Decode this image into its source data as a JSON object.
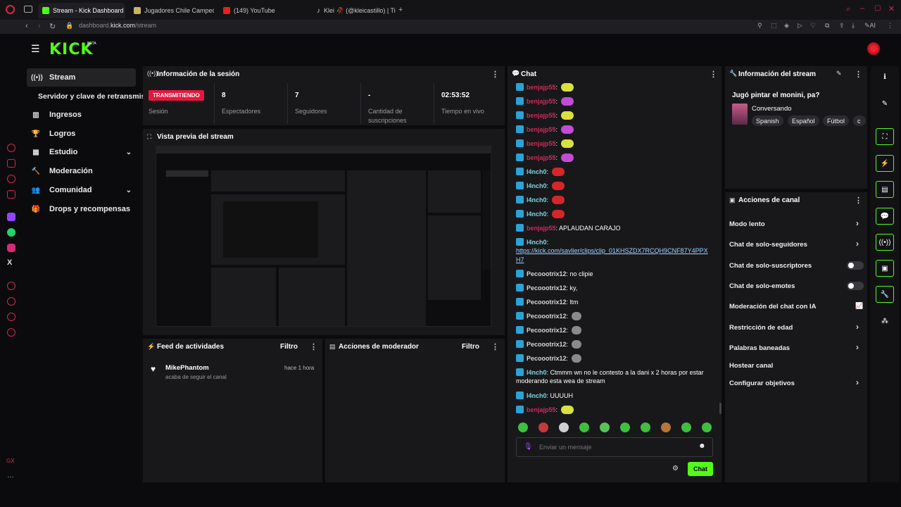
{
  "browser": {
    "tabs": [
      {
        "label": "Stream - Kick Dashboard",
        "active": true
      },
      {
        "label": "Jugadores Chile Campeón"
      },
      {
        "label": "(149) YouTube"
      },
      {
        "label": "Klei 🥀 (@kleicastillo) | Ti"
      }
    ],
    "url_prefix": "dashboard.",
    "url_domain": "kick.com",
    "url_path": "/stream"
  },
  "app": {
    "logo": "KICK",
    "logo_badge": "BETA"
  },
  "nav": [
    {
      "label": "Stream",
      "icon": "broadcast-icon",
      "active": true
    },
    {
      "label": "Servidor y clave de retransmisión",
      "icon": ""
    },
    {
      "label": "Ingresos",
      "icon": "chart-icon"
    },
    {
      "label": "Logros",
      "icon": "trophy-icon"
    },
    {
      "label": "Estudio",
      "icon": "grid-icon",
      "expandable": true
    },
    {
      "label": "Moderación",
      "icon": "hammer-icon"
    },
    {
      "label": "Comunidad",
      "icon": "users-icon",
      "expandable": true
    },
    {
      "label": "Drops y recompensas",
      "icon": "gift-icon"
    }
  ],
  "session": {
    "title": "Información de la sesión",
    "status": "TRANSMITIENDO",
    "stats": [
      {
        "label": "Sesión",
        "value": ""
      },
      {
        "label": "Espectadores",
        "value": "8"
      },
      {
        "label": "Seguidores",
        "value": "7"
      },
      {
        "label": "Cantidad de suscripciones",
        "value": "-"
      },
      {
        "label": "Tiempo en vivo",
        "value": "02:53:52"
      }
    ]
  },
  "preview": {
    "title": "Vista previa del stream"
  },
  "activity": {
    "title": "Feed de actividades",
    "filter": "Filtro",
    "items": [
      {
        "user": "MikePhantom",
        "action": "acaba de seguir el canal",
        "time": "hace 1 hora"
      }
    ]
  },
  "modactions": {
    "title": "Acciones de moderador",
    "filter": "Filtro"
  },
  "chat": {
    "title": "Chat",
    "messages": [
      {
        "user": "benjajp55",
        "color": "r",
        "emote": "y",
        "text": ""
      },
      {
        "user": "benjajp55",
        "color": "r",
        "emote": "p",
        "text": ""
      },
      {
        "user": "benjajp55",
        "color": "r",
        "emote": "y",
        "text": ""
      },
      {
        "user": "benjajp55",
        "color": "r",
        "emote": "p",
        "text": ""
      },
      {
        "user": "benjajp55",
        "color": "r",
        "emote": "y",
        "text": ""
      },
      {
        "user": "benjajp55",
        "color": "r",
        "emote": "p",
        "text": ""
      },
      {
        "user": "l4nch0",
        "color": "g",
        "emote": "r",
        "text": ""
      },
      {
        "user": "l4nch0",
        "color": "g",
        "emote": "r",
        "text": ""
      },
      {
        "user": "l4nch0",
        "color": "g",
        "emote": "r",
        "text": ""
      },
      {
        "user": "l4nch0",
        "color": "g",
        "emote": "r",
        "text": ""
      },
      {
        "user": "benjajp55",
        "color": "r",
        "emote": "",
        "text": "APLAUDAN CARAJO"
      }
    ],
    "link_user": "l4nch0",
    "link_line1": "https://kick.com/savlier/clips/clip_01KHSZDX7RCQH9CNF87Y4PPX",
    "link_line2": "H7",
    "messages2": [
      {
        "user": "Pecoootrix12",
        "text": "no clipie",
        "emote": ""
      },
      {
        "user": "Pecoootrix12",
        "text": "ky,",
        "emote": ""
      },
      {
        "user": "Pecoootrix12",
        "text": "ltm",
        "emote": ""
      },
      {
        "user": "Pecoootrix12",
        "text": "",
        "emote": "g"
      },
      {
        "user": "Pecoootrix12",
        "text": "",
        "emote": "g"
      },
      {
        "user": "Pecoootrix12",
        "text": "",
        "emote": "g"
      },
      {
        "user": "Pecoootrix12",
        "text": "",
        "emote": "g"
      }
    ],
    "long_user": "l4nch0",
    "long_line1": "Ctmmm wn no le contesto a la dani x 2 horas por estar",
    "long_line2": "moderando esta wea de stream",
    "last": [
      {
        "user": "l4nch0",
        "color": "g",
        "text": "UUUUH",
        "emote": ""
      },
      {
        "user": "benjajp55",
        "color": "r",
        "text": "",
        "emote": "y"
      }
    ],
    "placeholder": "Enviar un mensaje",
    "send_label": "Chat"
  },
  "stream_info": {
    "title": "Información del stream",
    "stream_title": "Jugó pintar el monini, pa?",
    "category": "Conversando",
    "tags": [
      "Spanish",
      "Español",
      "Fútbol",
      "c"
    ]
  },
  "channel_actions": {
    "title": "Acciones de canal",
    "items": [
      {
        "label": "Modo lento",
        "kind": "chevron"
      },
      {
        "label": "Chat de solo-seguidores",
        "kind": "chevron"
      },
      {
        "label": "Chat de solo-suscriptores",
        "kind": "toggle"
      },
      {
        "label": "Chat de solo-emotes",
        "kind": "toggle"
      },
      {
        "label": "Moderación del chat con IA",
        "kind": "chart"
      },
      {
        "label": "Restricción de edad",
        "kind": "chevron"
      },
      {
        "label": "Palabras baneadas",
        "kind": "chevron"
      },
      {
        "label": "Hostear canal",
        "kind": "none"
      },
      {
        "label": "Configurar objetivos",
        "kind": "chevron"
      }
    ]
  },
  "colors": {
    "accent": "#53fc18",
    "live": "#e6163d",
    "panel": "#18181b"
  }
}
